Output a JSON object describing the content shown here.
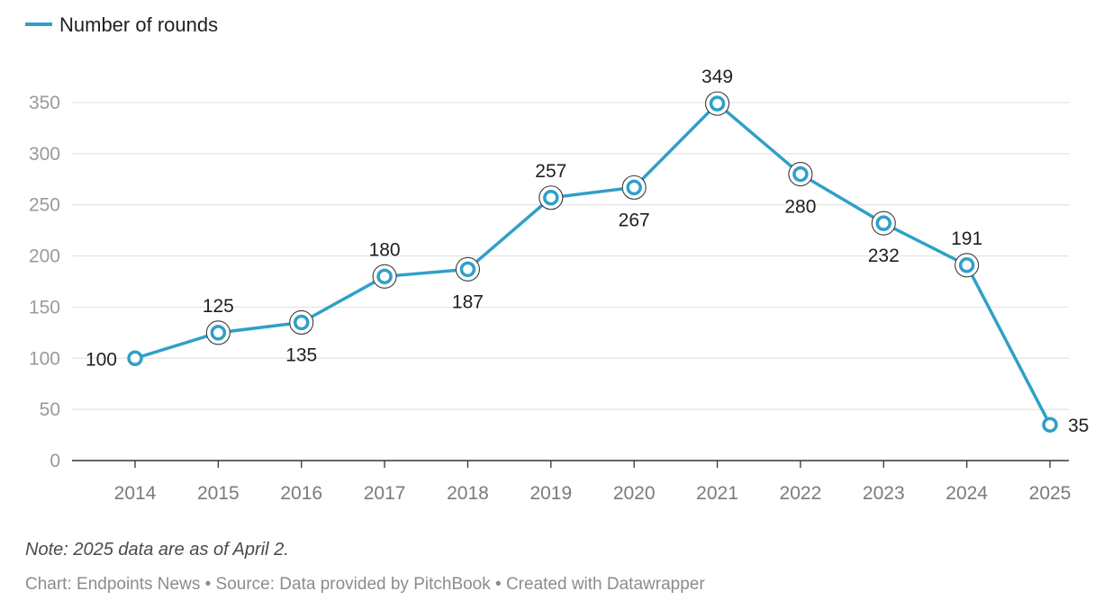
{
  "chart_data": {
    "type": "line",
    "title": "",
    "xlabel": "",
    "ylabel": "",
    "categories": [
      "2014",
      "2015",
      "2016",
      "2017",
      "2018",
      "2019",
      "2020",
      "2021",
      "2022",
      "2023",
      "2024",
      "2025"
    ],
    "series": [
      {
        "name": "Number of rounds",
        "values": [
          100,
          125,
          135,
          180,
          187,
          257,
          267,
          349,
          280,
          232,
          191,
          35
        ],
        "color": "#2fa0c8"
      }
    ],
    "ylim": [
      0,
      350
    ],
    "yticks": [
      0,
      50,
      100,
      150,
      200,
      250,
      300,
      350
    ],
    "grid": true,
    "legend_position": "top-left",
    "data_labels": [
      "100",
      "125",
      "135",
      "180",
      "187",
      "257",
      "267",
      "349",
      "280",
      "232",
      "191",
      "35"
    ],
    "label_positions": [
      "left",
      "above",
      "below",
      "above",
      "below",
      "above",
      "below",
      "above",
      "below",
      "below",
      "above",
      "right"
    ]
  },
  "legend": {
    "label": "Number of rounds"
  },
  "footer": {
    "note": "Note: 2025 data are as of April 2.",
    "credits": "Chart: Endpoints News • Source: Data provided by PitchBook • Created with Datawrapper"
  }
}
